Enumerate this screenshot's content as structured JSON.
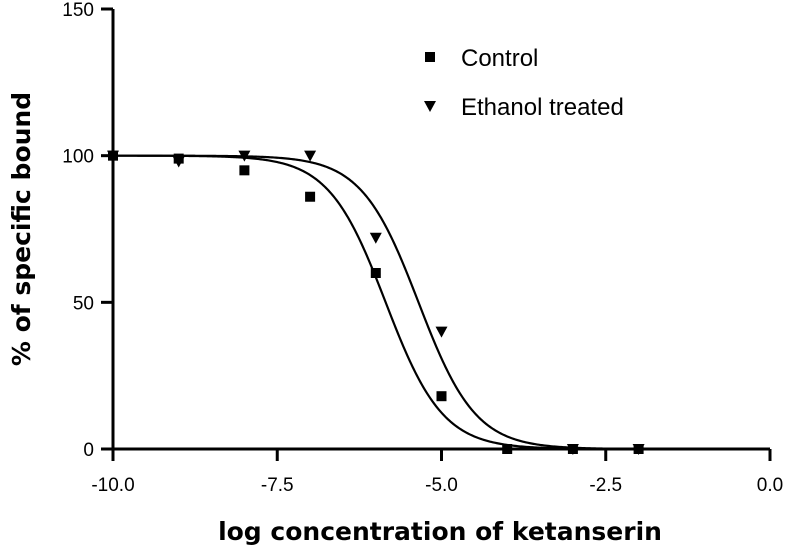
{
  "chart_data": {
    "type": "scatter",
    "title": "",
    "xlabel": "log concentration of ketanserin",
    "ylabel": "% of specific bound",
    "xlim": [
      -10.0,
      0.0
    ],
    "ylim": [
      0,
      150
    ],
    "x_ticks": [
      -10.0,
      -7.5,
      -5.0,
      -2.5,
      0.0
    ],
    "x_tick_labels": [
      "-10.0",
      "-7.5",
      "-5.0",
      "-2.5",
      "0.0"
    ],
    "y_ticks": [
      0,
      50,
      100,
      150
    ],
    "y_tick_labels": [
      "0",
      "50",
      "100",
      "150"
    ],
    "grid": false,
    "legend_position": "top-right",
    "series": [
      {
        "name": "Control",
        "marker": "square",
        "points": [
          {
            "x": -10.0,
            "y": 100
          },
          {
            "x": -9.0,
            "y": 99
          },
          {
            "x": -8.0,
            "y": 95
          },
          {
            "x": -7.0,
            "y": 86
          },
          {
            "x": -6.0,
            "y": 60
          },
          {
            "x": -5.0,
            "y": 18
          },
          {
            "x": -4.0,
            "y": 0
          },
          {
            "x": -3.0,
            "y": 0
          },
          {
            "x": -2.0,
            "y": 0
          }
        ],
        "fit": {
          "top": 100,
          "bottom": 0,
          "log_ic50": -5.85,
          "hill_slope": -1.0
        }
      },
      {
        "name": "Ethanol treated",
        "marker": "triangle-down",
        "points": [
          {
            "x": -10.0,
            "y": 100
          },
          {
            "x": -9.0,
            "y": 98
          },
          {
            "x": -8.0,
            "y": 100
          },
          {
            "x": -7.0,
            "y": 100
          },
          {
            "x": -6.0,
            "y": 72
          },
          {
            "x": -5.0,
            "y": 40
          },
          {
            "x": -3.0,
            "y": 0
          },
          {
            "x": -2.0,
            "y": 0
          }
        ],
        "fit": {
          "top": 100,
          "bottom": 0,
          "log_ic50": -5.35,
          "hill_slope": -1.0
        }
      }
    ]
  }
}
